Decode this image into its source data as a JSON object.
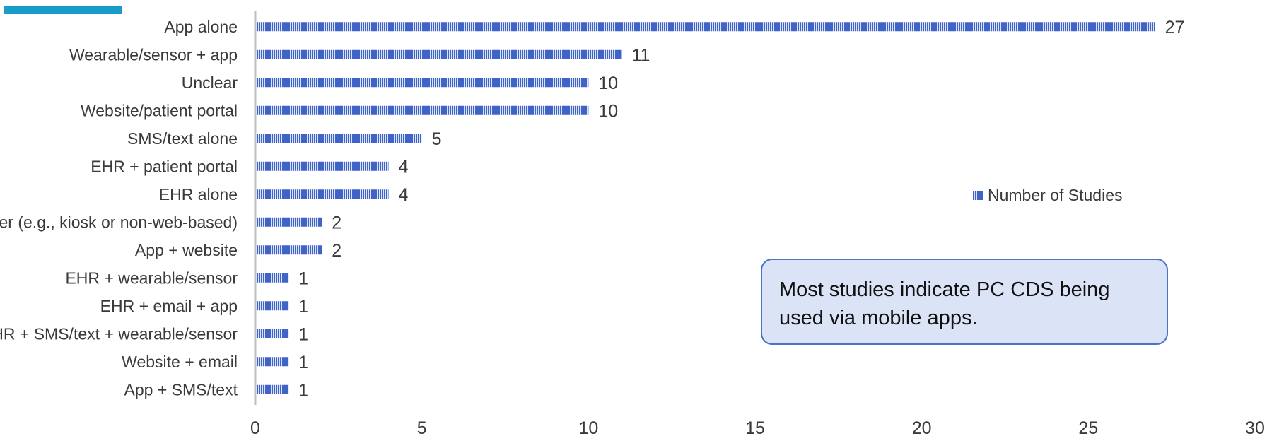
{
  "chart_data": {
    "type": "bar",
    "orientation": "horizontal",
    "categories": [
      "App alone",
      "Wearable/sensor + app",
      "Unclear",
      "Website/patient portal",
      "SMS/text alone",
      "EHR + patient portal",
      "EHR alone",
      "Other (e.g., kiosk or non-web-based)",
      "App + website",
      "EHR + wearable/sensor",
      "EHR + email + app",
      "EHR + SMS/text + wearable/sensor",
      "Website + email",
      "App + SMS/text"
    ],
    "series": [
      {
        "name": "Number of Studies",
        "values": [
          27,
          11,
          10,
          10,
          5,
          4,
          4,
          2,
          2,
          1,
          1,
          1,
          1,
          1
        ]
      }
    ],
    "xlim": [
      0,
      30
    ],
    "xticks": [
      0,
      5,
      10,
      15,
      20,
      25,
      30
    ],
    "grid": false,
    "legend_position": "right",
    "data_labels": true
  },
  "colors": {
    "bar": "#3f63c7",
    "bar_stripe": "#dbe4f6",
    "axis": "#bfbfbf",
    "accent": "#1a9cc9",
    "callout_fill": "#dbe4f6",
    "callout_border": "#4a74c9"
  },
  "legend": {
    "label": "Number of Studies"
  },
  "callout": {
    "text": "Most studies indicate PC CDS being used via mobile apps."
  }
}
